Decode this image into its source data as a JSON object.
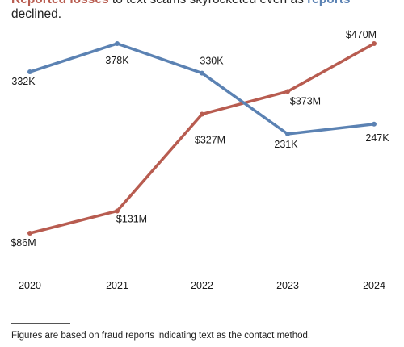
{
  "subtitle": {
    "losses_term": "Reported losses",
    "middle_text": " to text scams skyrocketed even as ",
    "reports_term": "reports",
    "end_text": " declined."
  },
  "colors": {
    "losses": "#b85c50",
    "reports": "#5b82b3"
  },
  "footnote": "Figures are based on fraud reports indicating text as the contact method.",
  "chart_data": {
    "type": "line",
    "x": [
      "2020",
      "2021",
      "2022",
      "2023",
      "2024"
    ],
    "series": [
      {
        "name": "Reported losses",
        "unit": "$M",
        "values": [
          86,
          131,
          327,
          373,
          470
        ],
        "labels": [
          "$86M",
          "$131M",
          "$327M",
          "$373M",
          "$470M"
        ],
        "color": "#b85c50"
      },
      {
        "name": "reports",
        "unit": "K",
        "values": [
          332,
          378,
          330,
          231,
          247
        ],
        "labels": [
          "332K",
          "378K",
          "330K",
          "231K",
          "247K"
        ],
        "color": "#5b82b3"
      }
    ],
    "grid": false
  }
}
